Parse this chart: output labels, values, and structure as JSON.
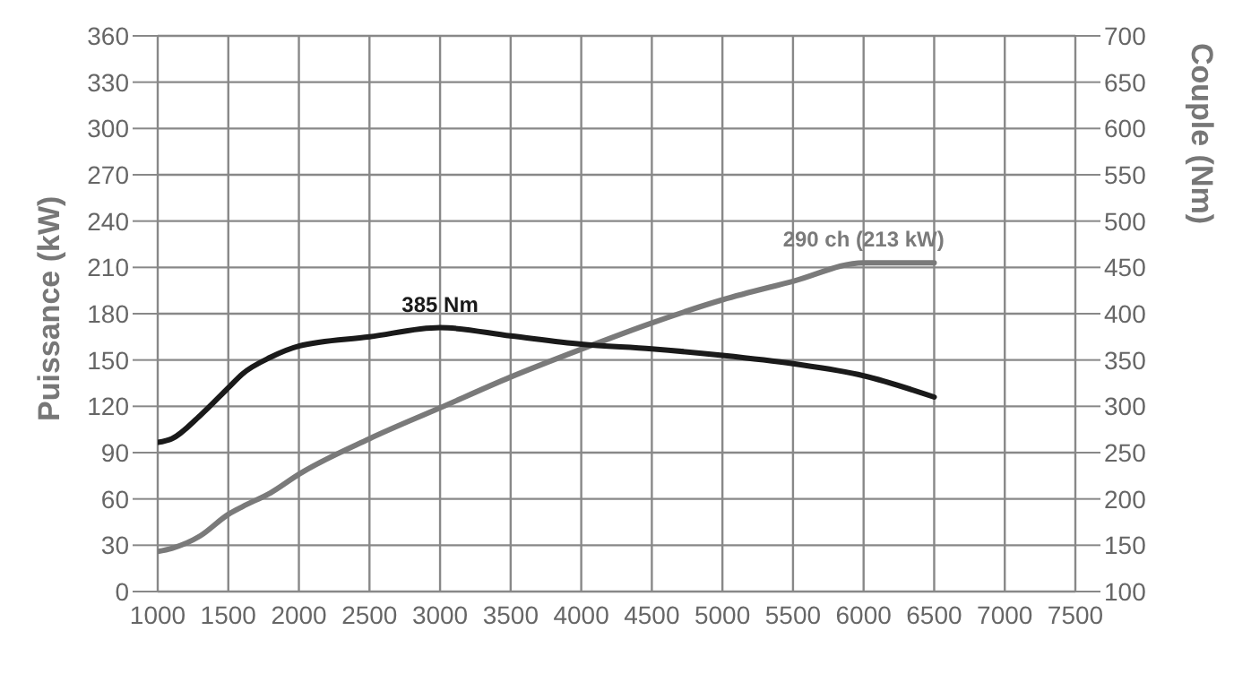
{
  "chart_data": {
    "type": "line",
    "x": [
      1000,
      1100,
      1300,
      1500,
      1600,
      1800,
      2000,
      2500,
      3000,
      3500,
      4000,
      4500,
      5000,
      5500,
      6000,
      6500
    ],
    "series": [
      {
        "name": null,
        "color": "#7a7a7a",
        "values": [
          26,
          28,
          36,
          50,
          55,
          64,
          76,
          99,
          119,
          139,
          157,
          174,
          189,
          201,
          213,
          213
        ]
      },
      {
        "name": null,
        "color": "#1a1a1a",
        "axis": "y2",
        "values": [
          261,
          265,
          290,
          320,
          335,
          353,
          365,
          375,
          385,
          376,
          367,
          362,
          355,
          346,
          333,
          310
        ]
      }
    ],
    "xlim": [
      1000,
      7500
    ],
    "xticks": [
      1000,
      1500,
      2000,
      2500,
      3000,
      3500,
      4000,
      4500,
      5000,
      5500,
      6000,
      6500,
      7000,
      7500
    ],
    "ylim": [
      0,
      360
    ],
    "yticks": [
      0,
      30,
      60,
      90,
      120,
      150,
      180,
      210,
      240,
      270,
      300,
      330,
      360
    ],
    "y2lim": [
      100,
      700
    ],
    "y2ticks": [
      100,
      150,
      200,
      250,
      300,
      350,
      400,
      450,
      500,
      550,
      600,
      650,
      700
    ],
    "ylabel": "Puissance (kW)",
    "y2label": "Couple (Nm)",
    "annotations": [
      {
        "text": "385 Nm",
        "x": 3000,
        "y": 171
      },
      {
        "text": "290 ch (213 kW)",
        "x": 6000,
        "y": 213
      }
    ],
    "grid": true,
    "legend": false,
    "marker": "none",
    "line_style": "solid"
  }
}
